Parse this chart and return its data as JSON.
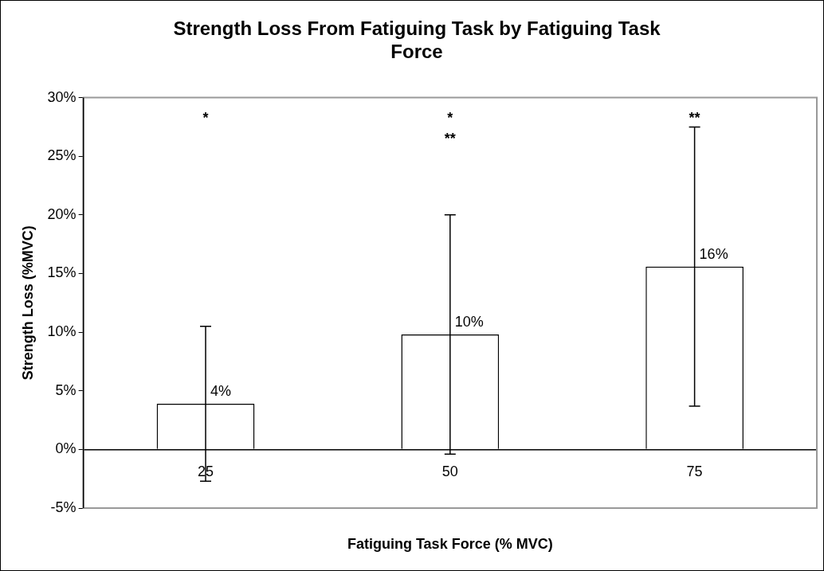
{
  "chart_data": {
    "type": "bar",
    "title": "Strength Loss From Fatiguing Task by Fatiguing Task Force",
    "xlabel": "Fatiguing Task Force (% MVC)",
    "ylabel": "Strength Loss (%MVC)",
    "categories": [
      "25",
      "50",
      "75"
    ],
    "values": [
      3.9,
      9.8,
      15.6
    ],
    "color": "#ffffff",
    "errors": [
      6.6,
      10.2,
      11.9
    ],
    "value_labels": [
      "4%",
      "10%",
      "16%"
    ],
    "ylim": [
      -5,
      30
    ],
    "yticks": [
      {
        "value": -5,
        "label": "-5%"
      },
      {
        "value": 0,
        "label": "0%"
      },
      {
        "value": 5,
        "label": "5%"
      },
      {
        "value": 10,
        "label": "10%"
      },
      {
        "value": 15,
        "label": "15%"
      },
      {
        "value": 20,
        "label": "20%"
      },
      {
        "value": 25,
        "label": "25%"
      },
      {
        "value": 30,
        "label": "30%"
      }
    ],
    "annotations": [
      "*",
      "*",
      "**",
      "**"
    ],
    "grid": false,
    "legend": false
  }
}
